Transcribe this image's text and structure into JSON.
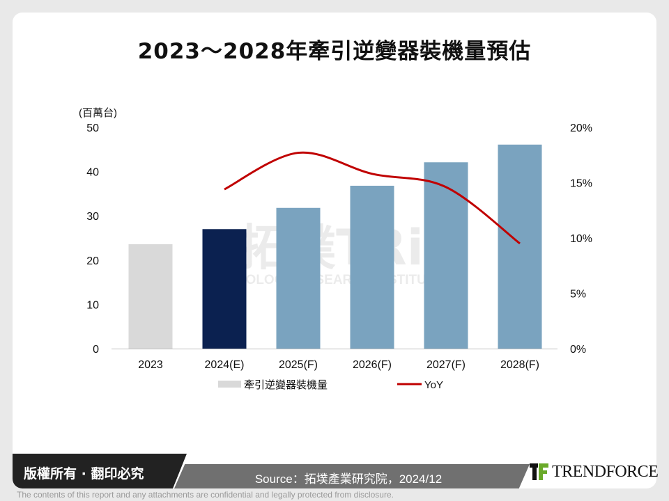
{
  "title": "2023～2028年牽引逆變器裝機量預估",
  "watermark": {
    "logo_text": "拓墣TRi",
    "subtitle": "TOPOLOGY RESEARCH INSTITUTE"
  },
  "chart_data": {
    "type": "bar+line",
    "title": "2023～2028年牽引逆變器裝機量預估",
    "ylabel": "(百萬台)",
    "categories": [
      "2023",
      "2024(E)",
      "2025(F)",
      "2026(F)",
      "2027(F)",
      "2028(F)"
    ],
    "ylim": [
      0,
      50
    ],
    "yticks": [
      "0",
      "10",
      "20",
      "30",
      "40",
      "50"
    ],
    "y2lim": [
      0,
      20
    ],
    "y2ticks": [
      "0%",
      "5%",
      "10%",
      "15%",
      "20%"
    ],
    "grid": false,
    "legend_position": "bottom",
    "series": [
      {
        "name": "牽引逆變器裝機量",
        "type": "bar",
        "values": [
          23.6,
          27.0,
          31.8,
          36.8,
          42.1,
          46.1
        ],
        "colors": [
          "#d9d9d9",
          "#0b2150",
          "#7aa3bf",
          "#7aa3bf",
          "#7aa3bf",
          "#7aa3bf"
        ],
        "legend_color": "#d9d9d9"
      },
      {
        "name": "YoY",
        "type": "line",
        "axis": "right",
        "color": "#c00000",
        "values": [
          null,
          14.4,
          17.7,
          15.8,
          14.6,
          9.5
        ]
      }
    ]
  },
  "footer": {
    "copyright": "版權所有 · 翻印必究",
    "source": "Source：拓墣產業研究院，2024/12",
    "brand": "TRENDFORCE",
    "disclaimer": "The contents of this report and any attachments are confidential and legally protected from disclosure."
  }
}
